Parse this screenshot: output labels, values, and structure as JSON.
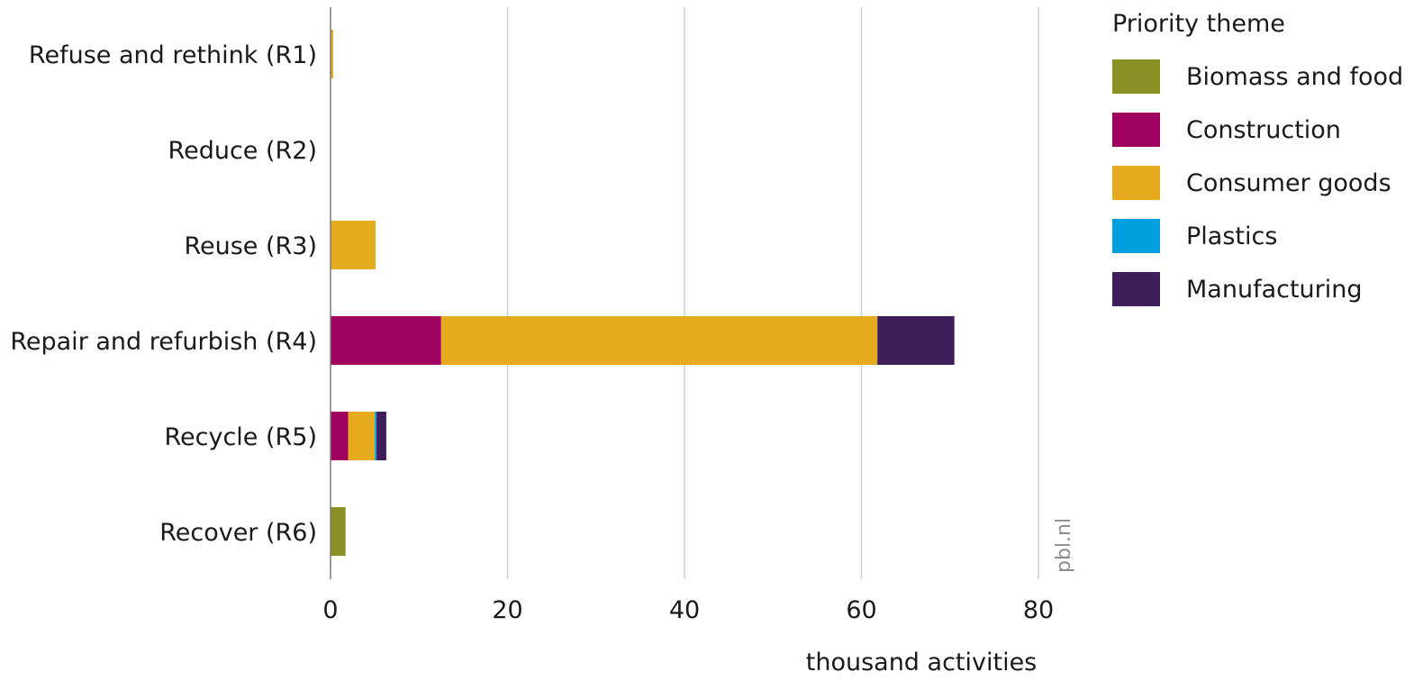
{
  "chart_data": {
    "type": "bar",
    "orientation": "horizontal",
    "stacked": true,
    "categories": [
      "Refuse and rethink (R1)",
      "Reduce (R2)",
      "Reuse (R3)",
      "Repair and refurbish (R4)",
      "Recycle (R5)",
      "Recover (R6)"
    ],
    "series": [
      {
        "name": "Biomass and food",
        "color": "#8a9124",
        "values": [
          0,
          0,
          0,
          0,
          0,
          1.7
        ]
      },
      {
        "name": "Construction",
        "color": "#a00060",
        "values": [
          0,
          0,
          0,
          12.5,
          2.0,
          0
        ]
      },
      {
        "name": "Consumer goods",
        "color": "#e6aa1e",
        "values": [
          0.3,
          0,
          5.1,
          49.3,
          3.0,
          0
        ]
      },
      {
        "name": "Plastics",
        "color": "#00a0e0",
        "values": [
          0,
          0,
          0,
          0,
          0.2,
          0
        ]
      },
      {
        "name": "Manufacturing",
        "color": "#3d1d5a",
        "values": [
          0,
          0,
          0,
          8.7,
          1.1,
          0
        ]
      }
    ],
    "xlabel": "thousand activities",
    "xlim": [
      0,
      80
    ],
    "xticks": [
      "0",
      "20",
      "40",
      "60",
      "80"
    ],
    "grid": true,
    "legend_title": "Priority theme",
    "legend_position": "right",
    "source": "pbl.nl"
  }
}
